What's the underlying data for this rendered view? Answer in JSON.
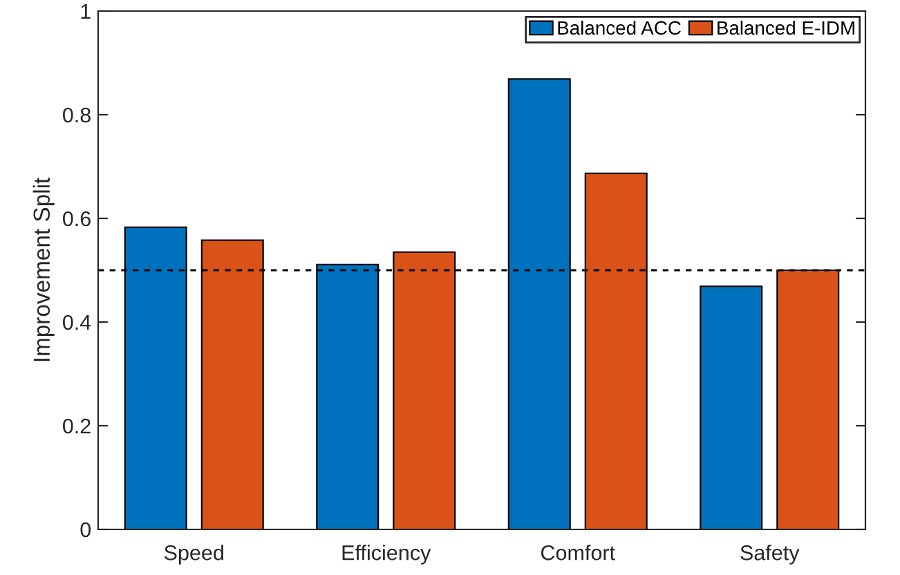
{
  "chart_data": {
    "type": "bar",
    "ylabel": "Improvement Split",
    "categories": [
      "Speed",
      "Efficiency",
      "Comfort",
      "Safety"
    ],
    "series": [
      {
        "name": "Balanced ACC",
        "color": "#0072bd",
        "values": [
          0.583,
          0.511,
          0.869,
          0.469
        ]
      },
      {
        "name": "Balanced E-IDM",
        "color": "#d95319",
        "values": [
          0.558,
          0.535,
          0.687,
          0.5
        ]
      }
    ],
    "ylim": [
      0,
      1
    ],
    "yticks": [
      0,
      0.2,
      0.4,
      0.6,
      0.8,
      1
    ],
    "grid": false,
    "legend": "top right",
    "ref_lines": [
      {
        "axis": "y",
        "value": 0.5,
        "color": "#000000",
        "line_style": "dashed"
      }
    ]
  }
}
